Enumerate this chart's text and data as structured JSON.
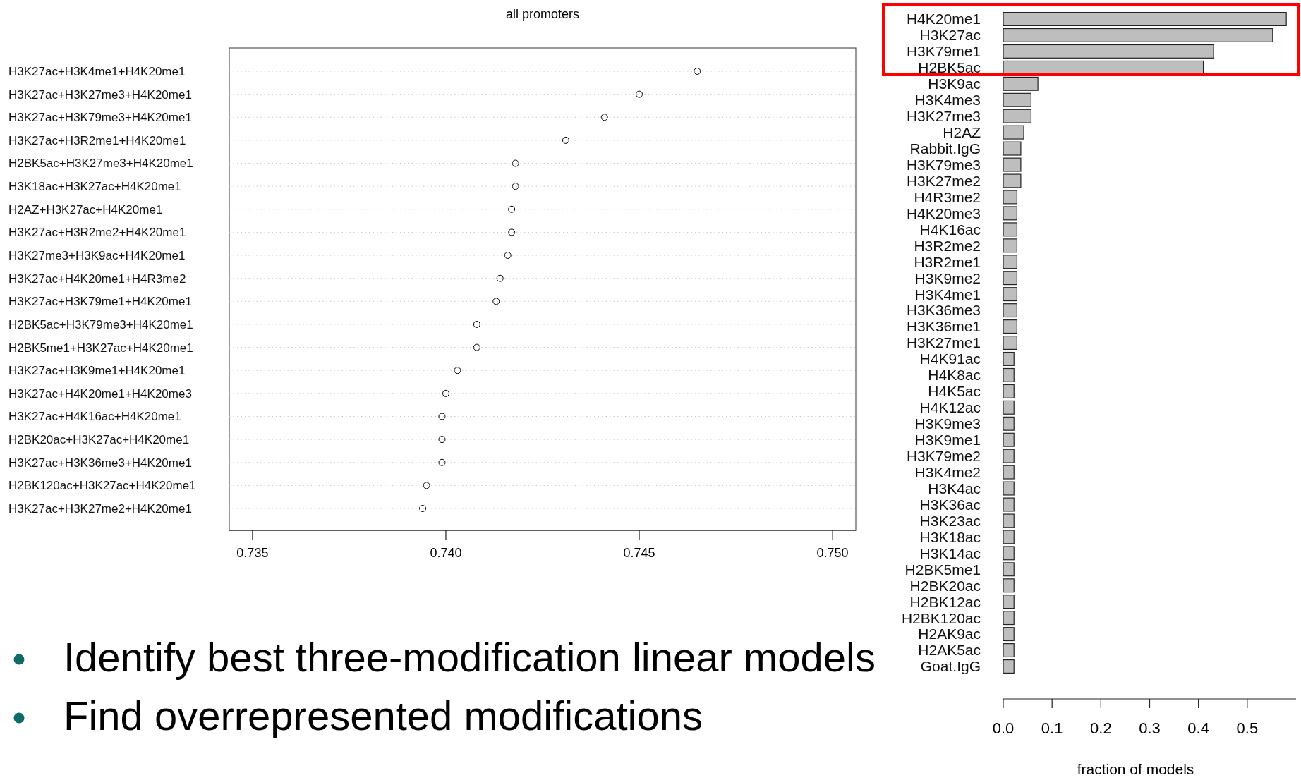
{
  "chart_data": [
    {
      "type": "scatter",
      "orientation": "horizontal",
      "title": "all promoters",
      "categories": [
        "H3K27ac+H3K4me1+H4K20me1",
        "H3K27ac+H3K27me3+H4K20me1",
        "H3K27ac+H3K79me3+H4K20me1",
        "H3K27ac+H3R2me1+H4K20me1",
        "H2BK5ac+H3K27me3+H4K20me1",
        "H3K18ac+H3K27ac+H4K20me1",
        "H2AZ+H3K27ac+H4K20me1",
        "H3K27ac+H3R2me2+H4K20me1",
        "H3K27me3+H3K9ac+H4K20me1",
        "H3K27ac+H4K20me1+H4R3me2",
        "H3K27ac+H3K79me1+H4K20me1",
        "H2BK5ac+H3K79me3+H4K20me1",
        "H2BK5me1+H3K27ac+H4K20me1",
        "H3K27ac+H3K9me1+H4K20me1",
        "H3K27ac+H4K20me1+H4K20me3",
        "H3K27ac+H4K16ac+H4K20me1",
        "H2BK20ac+H3K27ac+H4K20me1",
        "H3K27ac+H3K36me3+H4K20me1",
        "H2BK120ac+H3K27ac+H4K20me1",
        "H3K27ac+H3K27me2+H4K20me1"
      ],
      "values": [
        0.7465,
        0.745,
        0.7441,
        0.7431,
        0.7418,
        0.7418,
        0.7417,
        0.7417,
        0.7416,
        0.7414,
        0.7413,
        0.7408,
        0.7408,
        0.7403,
        0.74,
        0.7399,
        0.7399,
        0.7399,
        0.7395,
        0.7394
      ],
      "color": "#000000",
      "marker": "circle",
      "grid": "y",
      "xlim": [
        0.7344,
        0.7506
      ],
      "xticks": [
        {
          "value": 0.735,
          "label": "0.735"
        },
        {
          "value": 0.74,
          "label": "0.740"
        },
        {
          "value": 0.745,
          "label": "0.745"
        },
        {
          "value": 0.75,
          "label": "0.750"
        }
      ],
      "annotations": [
        "Identify best three-modification linear models",
        "Find overrepresented modifications"
      ]
    },
    {
      "type": "bar",
      "orientation": "horizontal",
      "xlabel": "fraction of models",
      "categories": [
        "H4K20me1",
        "H3K27ac",
        "H3K79me1",
        "H2BK5ac",
        "H3K9ac",
        "H3K4me3",
        "H3K27me3",
        "H2AZ",
        "Rabbit.IgG",
        "H3K79me3",
        "H3K27me2",
        "H4R3me2",
        "H4K20me3",
        "H4K16ac",
        "H3R2me2",
        "H3R2me1",
        "H3K9me2",
        "H3K4me1",
        "H3K36me3",
        "H3K36me1",
        "H3K27me1",
        "H4K91ac",
        "H4K8ac",
        "H4K5ac",
        "H4K12ac",
        "H3K9me3",
        "H3K9me1",
        "H3K79me2",
        "H3K4me2",
        "H3K4ac",
        "H3K36ac",
        "H3K23ac",
        "H3K18ac",
        "H3K14ac",
        "H2BK5me1",
        "H2BK20ac",
        "H2BK12ac",
        "H2BK120ac",
        "H2AK9ac",
        "H2AK5ac",
        "Goat.IgG"
      ],
      "values": [
        0.58,
        0.552,
        0.431,
        0.41,
        0.071,
        0.057,
        0.057,
        0.042,
        0.036,
        0.036,
        0.036,
        0.028,
        0.028,
        0.028,
        0.028,
        0.028,
        0.028,
        0.028,
        0.028,
        0.028,
        0.028,
        0.022,
        0.022,
        0.022,
        0.022,
        0.022,
        0.022,
        0.022,
        0.022,
        0.022,
        0.022,
        0.022,
        0.022,
        0.022,
        0.022,
        0.022,
        0.022,
        0.022,
        0.022,
        0.022,
        0.022
      ],
      "color": "#bebebe",
      "xlim": [
        0,
        0.6
      ],
      "xticks": [
        {
          "value": 0,
          "label": "0.0"
        },
        0.1,
        0.2,
        0.3,
        0.4,
        0.5
      ]
    }
  ]
}
